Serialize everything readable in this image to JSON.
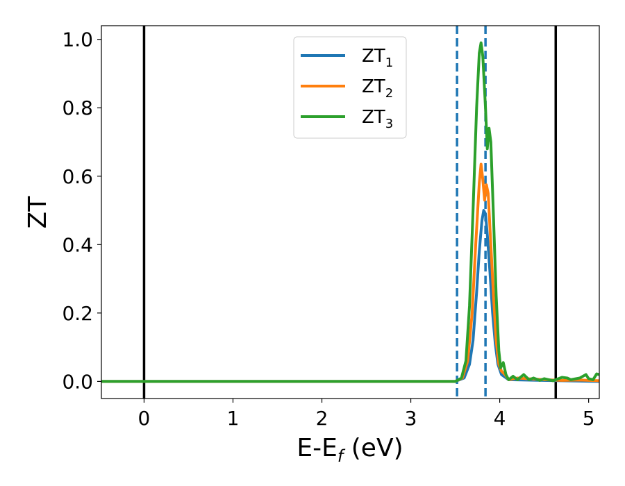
{
  "chart_data": {
    "type": "line",
    "xlabel": "E-E_f (eV)",
    "xlabel_main": "E-E",
    "xlabel_sub": "f",
    "xlabel_tail": " (eV)",
    "ylabel": "ZT",
    "xlim": [
      -0.48,
      5.12
    ],
    "ylim": [
      -0.05,
      1.04
    ],
    "xticks": [
      0,
      1,
      2,
      3,
      4,
      5
    ],
    "yticks": [
      0.0,
      0.2,
      0.4,
      0.6,
      0.8,
      1.0
    ],
    "xtick_labels": [
      "0",
      "1",
      "2",
      "3",
      "4",
      "5"
    ],
    "ytick_labels": [
      "0.0",
      "0.2",
      "0.4",
      "0.6",
      "0.8",
      "1.0"
    ],
    "legend_position": "top-center",
    "grid": false,
    "vertical_lines": [
      {
        "x": 0.0,
        "style": "solid",
        "color": "#000000"
      },
      {
        "x": 3.52,
        "style": "dashed",
        "color": "#1f77b4"
      },
      {
        "x": 3.84,
        "style": "dashed",
        "color": "#1f77b4"
      },
      {
        "x": 4.63,
        "style": "solid",
        "color": "#000000"
      }
    ],
    "series": [
      {
        "name": "ZT",
        "name_sub": "1",
        "color": "#1f77b4",
        "points": [
          [
            -0.48,
            0
          ],
          [
            3.5,
            0
          ],
          [
            3.6,
            0.01
          ],
          [
            3.66,
            0.05
          ],
          [
            3.7,
            0.12
          ],
          [
            3.74,
            0.26
          ],
          [
            3.77,
            0.38
          ],
          [
            3.8,
            0.47
          ],
          [
            3.82,
            0.5
          ],
          [
            3.84,
            0.49
          ],
          [
            3.86,
            0.43
          ],
          [
            3.89,
            0.32
          ],
          [
            3.92,
            0.2
          ],
          [
            3.95,
            0.11
          ],
          [
            3.98,
            0.05
          ],
          [
            4.02,
            0.02
          ],
          [
            4.1,
            0.005
          ],
          [
            5.12,
            0
          ]
        ]
      },
      {
        "name": "ZT",
        "name_sub": "2",
        "color": "#ff7f0e",
        "points": [
          [
            -0.48,
            0
          ],
          [
            3.5,
            0
          ],
          [
            3.58,
            0.01
          ],
          [
            3.64,
            0.06
          ],
          [
            3.69,
            0.2
          ],
          [
            3.73,
            0.4
          ],
          [
            3.77,
            0.58
          ],
          [
            3.79,
            0.635
          ],
          [
            3.81,
            0.59
          ],
          [
            3.83,
            0.53
          ],
          [
            3.85,
            0.575
          ],
          [
            3.87,
            0.55
          ],
          [
            3.9,
            0.4
          ],
          [
            3.93,
            0.25
          ],
          [
            3.96,
            0.12
          ],
          [
            3.99,
            0.05
          ],
          [
            4.02,
            0.03
          ],
          [
            4.06,
            0.02
          ],
          [
            4.1,
            0.005
          ],
          [
            4.2,
            0.01
          ],
          [
            4.3,
            0.008
          ],
          [
            4.5,
            0.005
          ],
          [
            4.7,
            0.003
          ],
          [
            4.9,
            0.004
          ],
          [
            5.12,
            0.002
          ]
        ]
      },
      {
        "name": "ZT",
        "name_sub": "3",
        "color": "#2ca02c",
        "points": [
          [
            -0.48,
            0
          ],
          [
            3.5,
            0
          ],
          [
            3.57,
            0.01
          ],
          [
            3.62,
            0.06
          ],
          [
            3.66,
            0.22
          ],
          [
            3.7,
            0.5
          ],
          [
            3.74,
            0.8
          ],
          [
            3.77,
            0.96
          ],
          [
            3.79,
            0.99
          ],
          [
            3.81,
            0.95
          ],
          [
            3.84,
            0.8
          ],
          [
            3.86,
            0.68
          ],
          [
            3.88,
            0.74
          ],
          [
            3.9,
            0.7
          ],
          [
            3.93,
            0.48
          ],
          [
            3.96,
            0.25
          ],
          [
            3.99,
            0.09
          ],
          [
            4.01,
            0.04
          ],
          [
            4.04,
            0.055
          ],
          [
            4.07,
            0.02
          ],
          [
            4.1,
            0.005
          ],
          [
            4.15,
            0.015
          ],
          [
            4.2,
            0.005
          ],
          [
            4.27,
            0.02
          ],
          [
            4.33,
            0.005
          ],
          [
            4.38,
            0.01
          ],
          [
            4.45,
            0.003
          ],
          [
            4.5,
            0.008
          ],
          [
            4.6,
            0.002
          ],
          [
            4.7,
            0.012
          ],
          [
            4.76,
            0.01
          ],
          [
            4.8,
            0.005
          ],
          [
            4.9,
            0.01
          ],
          [
            4.97,
            0.02
          ],
          [
            5.0,
            0.008
          ],
          [
            5.05,
            0.005
          ],
          [
            5.09,
            0.022
          ],
          [
            5.12,
            0.02
          ]
        ]
      }
    ]
  }
}
